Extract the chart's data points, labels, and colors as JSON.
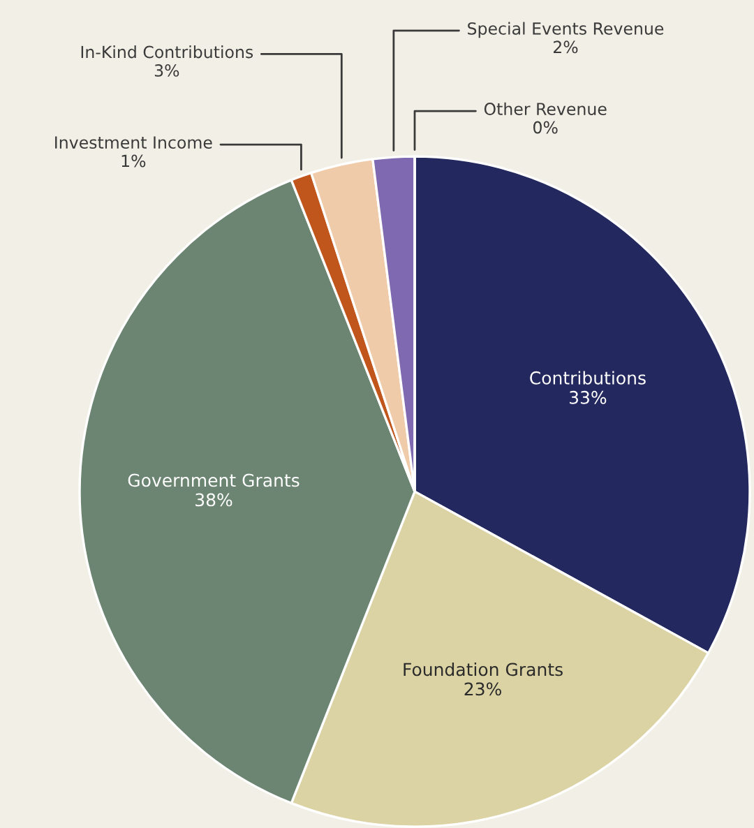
{
  "chart_data": {
    "type": "pie",
    "categories": [
      "Contributions",
      "Foundation Grants",
      "Government Grants",
      "Investment Income",
      "In-Kind Contributions",
      "Special Events Revenue",
      "Other Revenue"
    ],
    "values": [
      33,
      23,
      38,
      1,
      3,
      2,
      0
    ],
    "value_labels": [
      "33%",
      "23%",
      "38%",
      "1%",
      "3%",
      "2%",
      "0%"
    ],
    "colors": [
      "#23285e",
      "#dbd3a3",
      "#6b8572",
      "#c0561c",
      "#f0cba9",
      "#7f69b0",
      "#4a6fa5"
    ]
  }
}
